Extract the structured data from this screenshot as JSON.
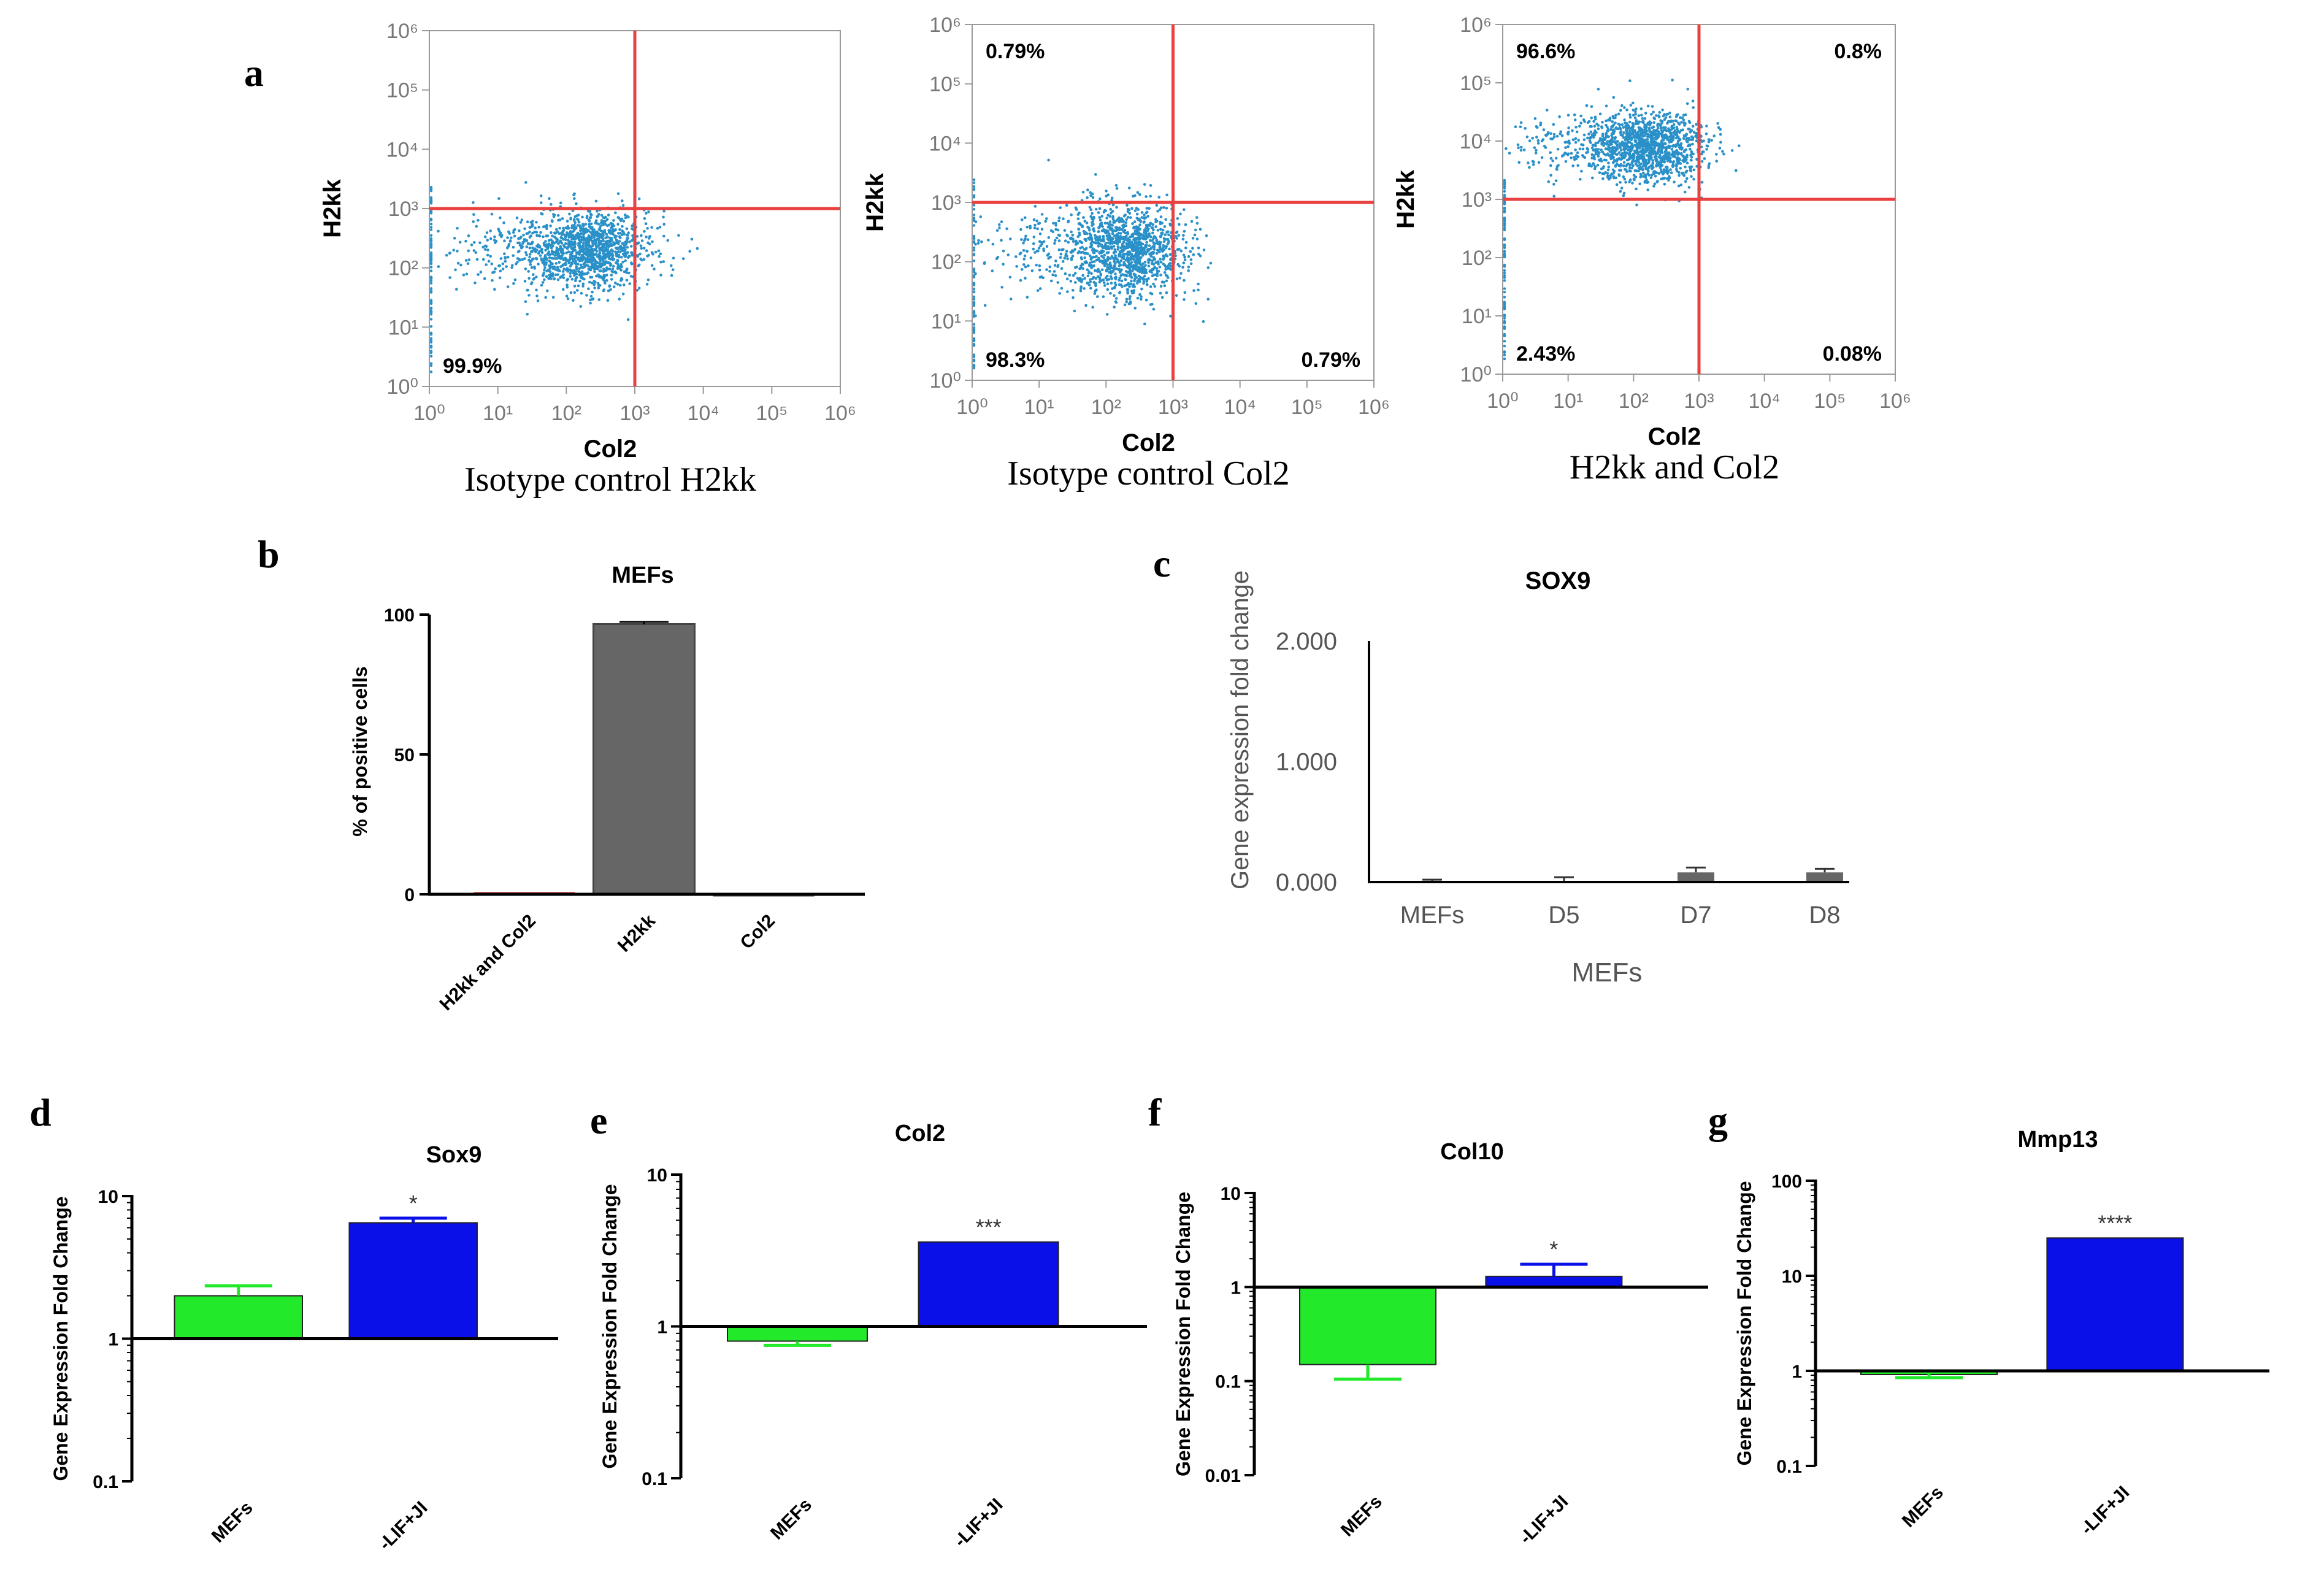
{
  "colors": {
    "quad_line": "#e8413f",
    "scatter": "#2a90c8",
    "bar_gray": "#666666",
    "bar_green": "#22e92a",
    "bar_blue": "#0a10e8",
    "axis": "#000000",
    "tick_gray": "#9a9a9a"
  },
  "panel_letters": {
    "a": "a",
    "b": "b",
    "c": "c",
    "d": "d",
    "e": "e",
    "f": "f",
    "g": "g"
  },
  "chart_data": [
    {
      "id": "a1",
      "type": "scatter",
      "xlabel": "Col2",
      "ylabel": "H2kk",
      "caption": "Isotype control H2kk",
      "xticks": [
        "10⁰",
        "10¹",
        "10²",
        "10³",
        "10⁴",
        "10⁵",
        "10⁶"
      ],
      "yticks": [
        "10⁰",
        "10¹",
        "10²",
        "10³",
        "10⁴",
        "10⁵",
        "10⁶"
      ],
      "gate_x": 3,
      "gate_y": 3,
      "cloud": {
        "cx": 2.3,
        "cy": 2.3,
        "sx": 0.45,
        "sy": 0.32
      },
      "quadrants": {
        "tl": "",
        "tr": "",
        "bl": "99.9%",
        "br": ""
      }
    },
    {
      "id": "a2",
      "type": "scatter",
      "xlabel": "Col2",
      "ylabel": "H2kk",
      "caption": "Isotype control Col2",
      "xticks": [
        "10⁰",
        "10¹",
        "10²",
        "10³",
        "10⁴",
        "10⁵",
        "10⁶"
      ],
      "yticks": [
        "10⁰",
        "10¹",
        "10²",
        "10³",
        "10⁴",
        "10⁵",
        "10⁶"
      ],
      "gate_x": 3,
      "gate_y": 3,
      "cloud": {
        "cx": 2.3,
        "cy": 2.2,
        "sx": 0.45,
        "sy": 0.4
      },
      "quadrants": {
        "tl": "0.79%",
        "tr": "",
        "bl": "98.3%",
        "br": "0.79%"
      }
    },
    {
      "id": "a3",
      "type": "scatter",
      "xlabel": "Col2",
      "ylabel": "H2kk",
      "caption": "H2kk and Col2",
      "xticks": [
        "10⁰",
        "10¹",
        "10²",
        "10³",
        "10⁴",
        "10⁵",
        "10⁶"
      ],
      "yticks": [
        "10⁰",
        "10¹",
        "10²",
        "10³",
        "10⁴",
        "10⁵",
        "10⁶"
      ],
      "gate_x": 3,
      "gate_y": 3,
      "cloud": {
        "cx": 2.2,
        "cy": 3.9,
        "sx": 0.45,
        "sy": 0.3
      },
      "quadrants": {
        "tl": "96.6%",
        "tr": "0.8%",
        "bl": "2.43%",
        "br": "0.08%"
      }
    },
    {
      "id": "b",
      "type": "bar",
      "title": "MEFs",
      "ylabel": "% of positive cells",
      "xlabel": "",
      "categories": [
        "H2kk and Col2",
        "H2kk",
        "Col2"
      ],
      "values": [
        0.8,
        96.6,
        0.08
      ],
      "errors": [
        0,
        0.8,
        0
      ],
      "bar_colors": [
        "#e8413f",
        "#666666",
        "#666666"
      ],
      "ylim": [
        0,
        100
      ],
      "yticks": [
        "0",
        "50",
        "100"
      ]
    },
    {
      "id": "c",
      "type": "bar",
      "title": "SOX9",
      "ylabel": "Gene expression fold change",
      "xlabel": "MEFs",
      "categories": [
        "MEFs",
        "D5",
        "D7",
        "D8"
      ],
      "values": [
        0.01,
        0.01,
        0.08,
        0.08
      ],
      "errors": [
        0.01,
        0.03,
        0.04,
        0.03
      ],
      "ylim": [
        0,
        2
      ],
      "yticks": [
        "0.000",
        "1.000",
        "2.000"
      ]
    },
    {
      "id": "d",
      "type": "bar",
      "scale": "log",
      "title": "Sox9",
      "ylabel": "Gene Expression Fold Change",
      "xlabel": "",
      "categories": [
        "MEFs",
        "-LIF+JI"
      ],
      "values": [
        2.0,
        6.5
      ],
      "errors_up": [
        2.35,
        7.0
      ],
      "significance": [
        "",
        "*"
      ],
      "ylim": [
        0.1,
        10
      ],
      "yticks": [
        "0.1",
        "1",
        "10"
      ]
    },
    {
      "id": "e",
      "type": "bar",
      "scale": "log",
      "title": "Col2",
      "ylabel": "Gene Expression Fold Change",
      "xlabel": "",
      "categories": [
        "MEFs",
        "-LIF+JI"
      ],
      "values": [
        0.8,
        3.6
      ],
      "errors_up": [
        0.75,
        3.6
      ],
      "significance": [
        "",
        "***"
      ],
      "ylim": [
        0.1,
        10
      ],
      "yticks": [
        "0.1",
        "1",
        "10"
      ]
    },
    {
      "id": "f",
      "type": "bar",
      "scale": "log",
      "title": "Col10",
      "ylabel": "Gene Expression Fold Change",
      "xlabel": "",
      "categories": [
        "MEFs",
        "-LIF+JI"
      ],
      "values": [
        0.15,
        1.3
      ],
      "errors_up": [
        0.105,
        1.75
      ],
      "significance": [
        "",
        "*"
      ],
      "ylim": [
        0.01,
        10
      ],
      "yticks": [
        "0.01",
        "0.1",
        "1",
        "10"
      ]
    },
    {
      "id": "g",
      "type": "bar",
      "scale": "log",
      "title": "Mmp13",
      "ylabel": "Gene Expression Fold Change",
      "xlabel": "",
      "categories": [
        "MEFs",
        "-LIF+JI"
      ],
      "values": [
        0.95,
        25
      ],
      "errors_up": [
        0.85,
        25
      ],
      "significance": [
        "",
        "****"
      ],
      "ylim": [
        0.1,
        100
      ],
      "yticks": [
        "0.1",
        "1",
        "10",
        "100"
      ]
    }
  ]
}
